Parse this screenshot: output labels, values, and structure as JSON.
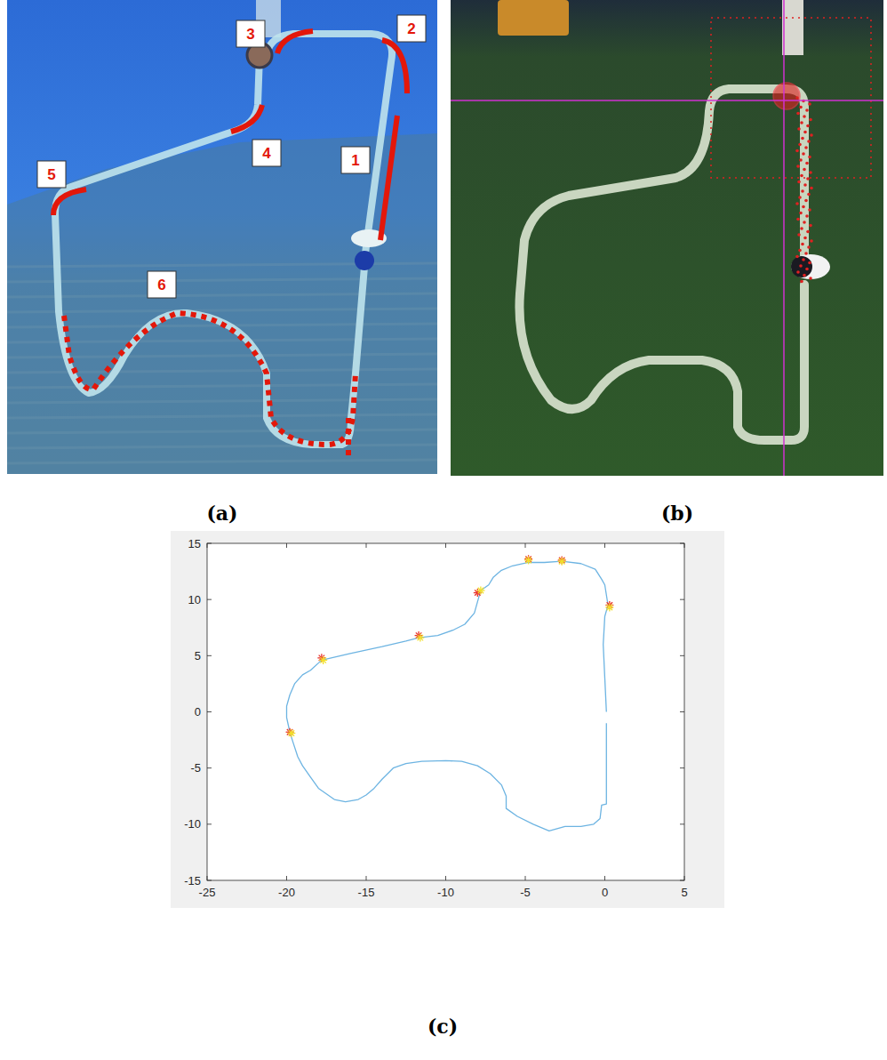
{
  "figure": {
    "panels": [
      {
        "letter": "(a)",
        "labels": [
          "1",
          "2",
          "3",
          "4",
          "5",
          "6"
        ]
      },
      {
        "letter": "(b)"
      },
      {
        "letter": "(c)"
      }
    ]
  },
  "chart_data": {
    "type": "line",
    "xlim": [
      -25,
      5
    ],
    "ylim": [
      -15,
      15
    ],
    "xticks": [
      -25,
      -20,
      -15,
      -10,
      -5,
      0,
      5
    ],
    "yticks": [
      -15,
      -10,
      -5,
      0,
      5,
      10,
      15
    ],
    "grid": false,
    "series": [
      {
        "type": "line",
        "color": "#6db4e2",
        "marker": "none",
        "line_style": "solid",
        "x": [
          0.1,
          0.1,
          0.1,
          0.1,
          -0.2,
          -0.3,
          -0.7,
          -1.5,
          -2.5,
          -3.5,
          -4.5,
          -5.5,
          -6.2,
          -6.2,
          -6.5,
          -7.2,
          -8,
          -9,
          -10,
          -11.5,
          -12.5,
          -13.3,
          -14,
          -14.5,
          -15,
          -15.5,
          -16.3,
          -17,
          -17.5,
          -18,
          -18.5,
          -19,
          -19.3,
          -19.6,
          -19.8,
          -20,
          -20,
          -19.8,
          -19.5,
          -19,
          -18.5,
          -17.8,
          -16,
          -14,
          -12.5,
          -11.7,
          -10.5,
          -9.5,
          -8.8,
          -8.2,
          -8,
          -7.8,
          -7.3,
          -7,
          -6.5,
          -5.8,
          -4.8,
          -3.8,
          -2.7,
          -1.5,
          -0.6,
          -0.2,
          0,
          0.2,
          0,
          -0.1,
          0,
          0.1
        ],
        "values": [
          -1,
          -3,
          -5,
          -8.2,
          -8.3,
          -9.5,
          -10,
          -10.2,
          -10.2,
          -10.6,
          -10,
          -9.3,
          -8.6,
          -7.5,
          -6.5,
          -5.5,
          -4.8,
          -4.4,
          -4.35,
          -4.4,
          -4.6,
          -5,
          -6,
          -6.8,
          -7.4,
          -7.8,
          -8,
          -7.8,
          -7.3,
          -6.8,
          -5.8,
          -4.8,
          -4,
          -2.7,
          -1.8,
          -0.5,
          0.5,
          1.5,
          2.5,
          3.3,
          3.7,
          4.6,
          5.2,
          5.8,
          6.3,
          6.6,
          6.8,
          7.3,
          7.8,
          8.8,
          9.8,
          10.8,
          11.3,
          12,
          12.6,
          13,
          13.3,
          13.3,
          13.4,
          13.2,
          12.7,
          11.8,
          11.3,
          9.5,
          8.5,
          6,
          3,
          0
        ]
      },
      {
        "type": "scatter",
        "color": "#e8302a",
        "marker": "star",
        "x": [
          0.3,
          -2.7,
          -4.8,
          -8,
          -11.7,
          -17.8,
          -19.8
        ],
        "values": [
          9.5,
          13.5,
          13.6,
          10.6,
          6.8,
          4.8,
          -1.8
        ]
      },
      {
        "type": "scatter",
        "color": "#f2e02a",
        "marker": "star",
        "x": [
          0.3,
          -2.7,
          -4.8,
          -7.8,
          -11.6,
          -17.7,
          -19.7
        ],
        "values": [
          9.3,
          13.4,
          13.5,
          10.8,
          6.6,
          4.6,
          -1.9
        ]
      }
    ]
  }
}
